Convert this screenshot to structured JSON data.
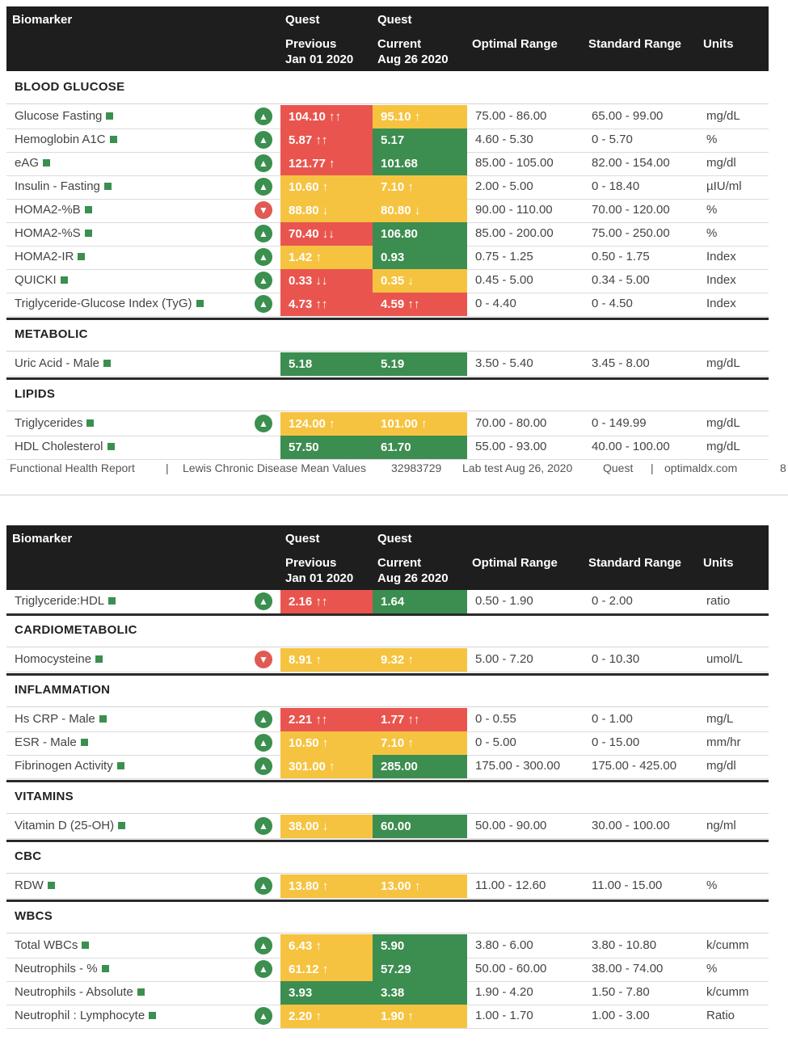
{
  "header": {
    "biomarker": "Biomarker",
    "prev_lab": "Quest",
    "prev_label": "Previous",
    "prev_date": "Jan 01 2020",
    "cur_lab": "Quest",
    "cur_label": "Current",
    "cur_date": "Aug 26 2020",
    "optimal": "Optimal Range",
    "standard": "Standard Range",
    "units": "Units"
  },
  "colors": {
    "red": "#e9554e",
    "yellow": "#f6c340",
    "green": "#3c8d50",
    "header_bg": "#1e1e1e"
  },
  "page1": {
    "sections": [
      {
        "title": "BLOOD GLUCOSE",
        "rows": [
          {
            "name": "Glucose Fasting",
            "thumb": "up",
            "prev": "104.10 ↑↑",
            "pc": "red",
            "cur": "95.10 ↑",
            "cc": "yellow",
            "opt": "75.00 - 86.00",
            "std": "65.00 - 99.00",
            "unit": "mg/dL"
          },
          {
            "name": "Hemoglobin A1C",
            "thumb": "up",
            "prev": "5.87 ↑↑",
            "pc": "red",
            "cur": "5.17",
            "cc": "green",
            "opt": "4.60 - 5.30",
            "std": "0 - 5.70",
            "unit": "%"
          },
          {
            "name": "eAG",
            "thumb": "up",
            "prev": "121.77 ↑",
            "pc": "red",
            "cur": "101.68",
            "cc": "green",
            "opt": "85.00 - 105.00",
            "std": "82.00 - 154.00",
            "unit": "mg/dl"
          },
          {
            "name": "Insulin - Fasting",
            "thumb": "up",
            "prev": "10.60 ↑",
            "pc": "yellow",
            "cur": "7.10 ↑",
            "cc": "yellow",
            "opt": "2.00 - 5.00",
            "std": "0 - 18.40",
            "unit": "µIU/ml"
          },
          {
            "name": "HOMA2-%B",
            "thumb": "down",
            "prev": "88.80 ↓",
            "pc": "yellow",
            "cur": "80.80 ↓",
            "cc": "yellow",
            "opt": "90.00 - 110.00",
            "std": "70.00 - 120.00",
            "unit": "%"
          },
          {
            "name": "HOMA2-%S",
            "thumb": "up",
            "prev": "70.40 ↓↓",
            "pc": "red",
            "cur": "106.80",
            "cc": "green",
            "opt": "85.00 - 200.00",
            "std": "75.00 - 250.00",
            "unit": "%"
          },
          {
            "name": "HOMA2-IR",
            "thumb": "up",
            "prev": "1.42 ↑",
            "pc": "yellow",
            "cur": "0.93",
            "cc": "green",
            "opt": "0.75 - 1.25",
            "std": "0.50 - 1.75",
            "unit": "Index"
          },
          {
            "name": "QUICKI",
            "thumb": "up",
            "prev": "0.33 ↓↓",
            "pc": "red",
            "cur": "0.35 ↓",
            "cc": "yellow",
            "opt": "0.45 - 5.00",
            "std": "0.34 - 5.00",
            "unit": "Index"
          },
          {
            "name": "Triglyceride-Glucose Index (TyG)",
            "thumb": "up",
            "prev": "4.73 ↑↑",
            "pc": "red",
            "cur": "4.59 ↑↑",
            "cc": "red",
            "opt": "0 - 4.40",
            "std": "0 - 4.50",
            "unit": "Index"
          }
        ]
      },
      {
        "title": "METABOLIC",
        "rows": [
          {
            "name": "Uric Acid - Male",
            "thumb": "",
            "prev": "5.18",
            "pc": "green",
            "cur": "5.19",
            "cc": "green",
            "opt": "3.50 - 5.40",
            "std": "3.45 - 8.00",
            "unit": "mg/dL"
          }
        ]
      },
      {
        "title": "LIPIDS",
        "rows": [
          {
            "name": "Triglycerides",
            "thumb": "up",
            "prev": "124.00 ↑",
            "pc": "yellow",
            "cur": "101.00 ↑",
            "cc": "yellow",
            "opt": "70.00 - 80.00",
            "std": "0 - 149.99",
            "unit": "mg/dL"
          },
          {
            "name": "HDL Cholesterol",
            "thumb": "",
            "prev": "57.50",
            "pc": "green",
            "cur": "61.70",
            "cc": "green",
            "opt": "55.00 - 93.00",
            "std": "40.00 - 100.00",
            "unit": "mg/dL"
          }
        ]
      }
    ]
  },
  "footer": {
    "report": "Functional Health Report",
    "sep1": "|",
    "patient": "Lewis Chronic Disease Mean Values",
    "id": "32983729",
    "lab": "Lab test Aug 26, 2020",
    "lab_name": "Quest",
    "sep2": "|",
    "site": "optimaldx.com",
    "page": "8"
  },
  "page2": {
    "lead_row": {
      "name": "Triglyceride:HDL",
      "thumb": "up",
      "prev": "2.16 ↑↑",
      "pc": "red",
      "cur": "1.64",
      "cc": "green",
      "opt": "0.50 - 1.90",
      "std": "0 - 2.00",
      "unit": "ratio"
    },
    "sections": [
      {
        "title": "CARDIOMETABOLIC",
        "rows": [
          {
            "name": "Homocysteine",
            "thumb": "down",
            "prev": "8.91 ↑",
            "pc": "yellow",
            "cur": "9.32 ↑",
            "cc": "yellow",
            "opt": "5.00 - 7.20",
            "std": "0 - 10.30",
            "unit": "umol/L"
          }
        ]
      },
      {
        "title": "INFLAMMATION",
        "rows": [
          {
            "name": "Hs CRP - Male",
            "thumb": "up",
            "prev": "2.21 ↑↑",
            "pc": "red",
            "cur": "1.77 ↑↑",
            "cc": "red",
            "opt": "0 - 0.55",
            "std": "0 - 1.00",
            "unit": "mg/L"
          },
          {
            "name": "ESR - Male",
            "thumb": "up",
            "prev": "10.50 ↑",
            "pc": "yellow",
            "cur": "7.10 ↑",
            "cc": "yellow",
            "opt": "0 - 5.00",
            "std": "0 - 15.00",
            "unit": "mm/hr"
          },
          {
            "name": "Fibrinogen Activity",
            "thumb": "up",
            "prev": "301.00 ↑",
            "pc": "yellow",
            "cur": "285.00",
            "cc": "green",
            "opt": "175.00 - 300.00",
            "std": "175.00 - 425.00",
            "unit": "mg/dl"
          }
        ]
      },
      {
        "title": "VITAMINS",
        "rows": [
          {
            "name": "Vitamin D (25-OH)",
            "thumb": "up",
            "prev": "38.00 ↓",
            "pc": "yellow",
            "cur": "60.00",
            "cc": "green",
            "opt": "50.00 - 90.00",
            "std": "30.00 - 100.00",
            "unit": "ng/ml"
          }
        ]
      },
      {
        "title": "CBC",
        "rows": [
          {
            "name": "RDW",
            "thumb": "up",
            "prev": "13.80 ↑",
            "pc": "yellow",
            "cur": "13.00 ↑",
            "cc": "yellow",
            "opt": "11.00 - 12.60",
            "std": "11.00 - 15.00",
            "unit": "%"
          }
        ]
      },
      {
        "title": "WBCS",
        "rows": [
          {
            "name": "Total WBCs",
            "thumb": "up",
            "prev": "6.43 ↑",
            "pc": "yellow",
            "cur": "5.90",
            "cc": "green",
            "opt": "3.80 - 6.00",
            "std": "3.80 - 10.80",
            "unit": "k/cumm"
          },
          {
            "name": "Neutrophils - %",
            "thumb": "up",
            "prev": "61.12 ↑",
            "pc": "yellow",
            "cur": "57.29",
            "cc": "green",
            "opt": "50.00 - 60.00",
            "std": "38.00 - 74.00",
            "unit": "%"
          },
          {
            "name": "Neutrophils - Absolute",
            "thumb": "",
            "prev": "3.93",
            "pc": "green",
            "cur": "3.38",
            "cc": "green",
            "opt": "1.90 - 4.20",
            "std": "1.50 - 7.80",
            "unit": "k/cumm"
          },
          {
            "name": "Neutrophil : Lymphocyte",
            "thumb": "up",
            "prev": "2.20 ↑",
            "pc": "yellow",
            "cur": "1.90 ↑",
            "cc": "yellow",
            "opt": "1.00 - 1.70",
            "std": "1.00 - 3.00",
            "unit": "Ratio"
          }
        ]
      }
    ]
  }
}
